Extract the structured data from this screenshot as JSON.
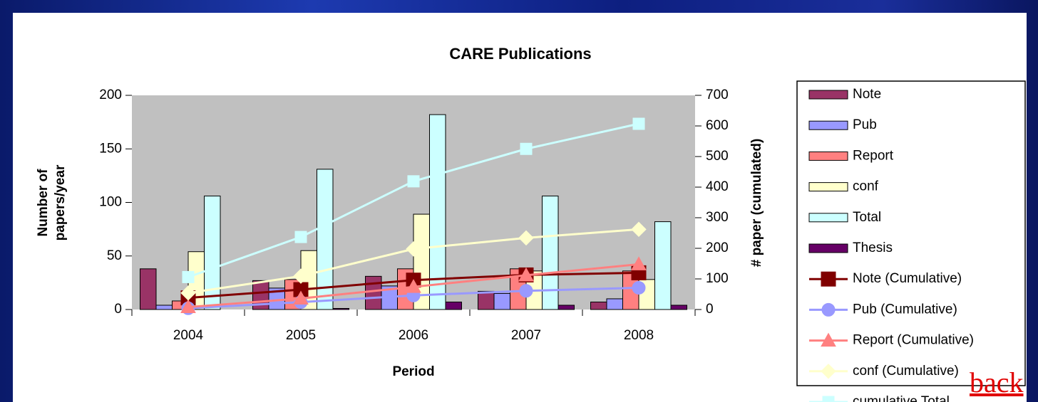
{
  "chart_data": {
    "type": "bar",
    "title": "CARE Publications",
    "x_label": "Period",
    "y_label": "Number of papers/year",
    "y2_label": "# paper (cumulated)",
    "categories": [
      "2004",
      "2005",
      "2006",
      "2007",
      "2008"
    ],
    "ylim": [
      0,
      200
    ],
    "yticks": [
      0,
      50,
      100,
      150,
      200
    ],
    "y2lim": [
      0,
      700
    ],
    "y2ticks": [
      0,
      100,
      200,
      300,
      400,
      500,
      600,
      700
    ],
    "plot_background": "#c0c0c0",
    "legend": "right",
    "series": [
      {
        "name": "Note",
        "type": "bar",
        "color": "#993366",
        "values": [
          38,
          27,
          31,
          17,
          7
        ]
      },
      {
        "name": "Pub",
        "type": "bar",
        "color": "#9999ff",
        "values": [
          4,
          20,
          22,
          15,
          10
        ]
      },
      {
        "name": "Report",
        "type": "bar",
        "color": "#ff8080",
        "values": [
          8,
          28,
          38,
          38,
          36
        ]
      },
      {
        "name": "conf",
        "type": "bar",
        "color": "#ffffcc",
        "values": [
          54,
          55,
          89,
          36,
          28
        ]
      },
      {
        "name": "Total",
        "type": "bar",
        "color": "#ccffff",
        "values": [
          106,
          131,
          182,
          106,
          82
        ]
      },
      {
        "name": "Thesis",
        "type": "bar",
        "color": "#660066",
        "values": [
          0,
          1,
          7,
          4,
          4
        ]
      },
      {
        "name": "Note (Cumulative)",
        "type": "line",
        "axis": "y2",
        "marker": "square",
        "color": "#800000",
        "values": [
          38,
          65,
          96,
          113,
          120
        ]
      },
      {
        "name": "Pub (Cumulative)",
        "type": "line",
        "axis": "y2",
        "marker": "circle",
        "color": "#9999ff",
        "values": [
          4,
          24,
          46,
          61,
          71
        ]
      },
      {
        "name": "Report (Cumulative)",
        "type": "line",
        "axis": "y2",
        "marker": "triangle",
        "color": "#ff8080",
        "values": [
          8,
          36,
          74,
          112,
          148
        ]
      },
      {
        "name": "conf (Cumulative)",
        "type": "line",
        "axis": "y2",
        "marker": "diamond",
        "color": "#ffffcc",
        "values": [
          54,
          109,
          198,
          234,
          262
        ]
      },
      {
        "name": "cumulative Total",
        "type": "line",
        "axis": "y2",
        "marker": "square",
        "color": "#ccffff",
        "values": [
          106,
          237,
          419,
          525,
          607
        ]
      }
    ]
  },
  "link": "back"
}
